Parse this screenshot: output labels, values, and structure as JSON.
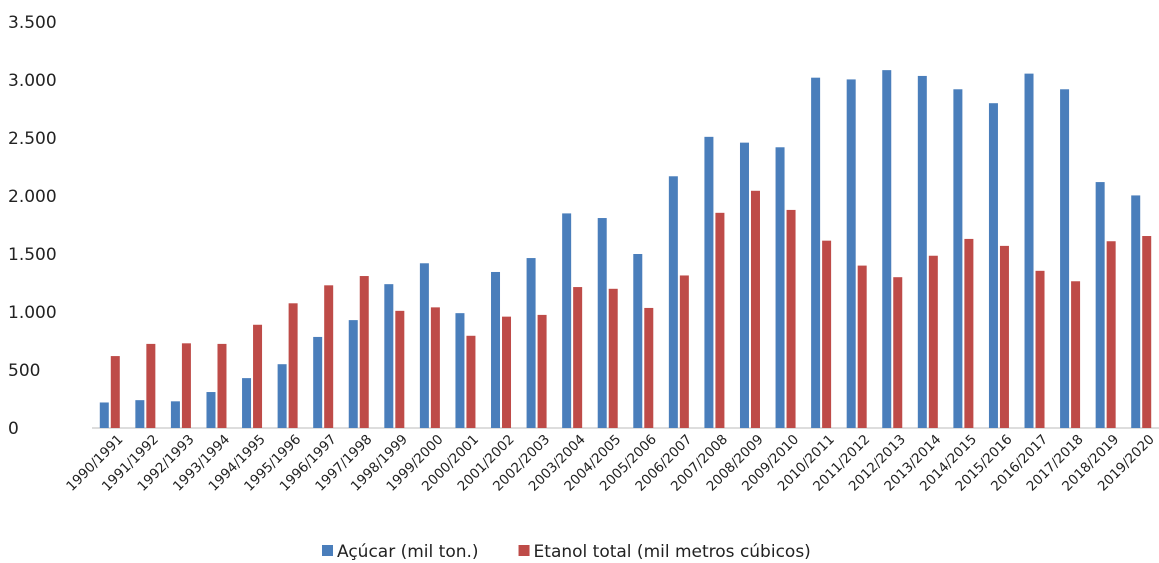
{
  "chart_data": {
    "type": "bar",
    "categories": [
      "1990/1991",
      "1991/1992",
      "1992/1993",
      "1993/1994",
      "1994/1995",
      "1995/1996",
      "1996/1997",
      "1997/1998",
      "1998/1999",
      "1999/2000",
      "2000/2001",
      "2001/2002",
      "2002/2003",
      "2003/2004",
      "2004/2005",
      "2005/2006",
      "2006/2007",
      "2007/2008",
      "2008/2009",
      "2009/2010",
      "2010/2011",
      "2011/2012",
      "2012/2013",
      "2013/2014",
      "2014/2015",
      "2015/2016",
      "2016/2017",
      "2017/2018",
      "2018/2019",
      "2019/2020"
    ],
    "series": [
      {
        "name": "Açúcar (mil ton.)",
        "color": "#4a7ebb",
        "values": [
          220,
          240,
          230,
          310,
          430,
          550,
          785,
          930,
          1240,
          1420,
          990,
          1345,
          1465,
          1850,
          1810,
          1500,
          2170,
          2510,
          2460,
          2420,
          3020,
          3005,
          3085,
          3035,
          2920,
          2800,
          3055,
          2920,
          2120,
          2005
        ]
      },
      {
        "name": "Etanol total (mil metros cúbicos)",
        "color": "#be4b48",
        "values": [
          620,
          725,
          730,
          725,
          890,
          1075,
          1230,
          1310,
          1010,
          1040,
          795,
          960,
          975,
          1215,
          1200,
          1035,
          1315,
          1855,
          2045,
          1880,
          1615,
          1400,
          1300,
          1485,
          1630,
          1570,
          1355,
          1265,
          1610,
          1655
        ]
      }
    ],
    "ylim": [
      0,
      3500
    ],
    "yticks": [
      0,
      500,
      {
        "value": 1000,
        "label": "1.000"
      },
      {
        "value": 1500,
        "label": "1.500"
      },
      {
        "value": 2000,
        "label": "2.000"
      },
      {
        "value": 2500,
        "label": "2.500"
      },
      {
        "value": 3000,
        "label": "3.000"
      },
      {
        "value": 3500,
        "label": "3.500"
      }
    ],
    "grid": false,
    "legend": "bottom"
  }
}
